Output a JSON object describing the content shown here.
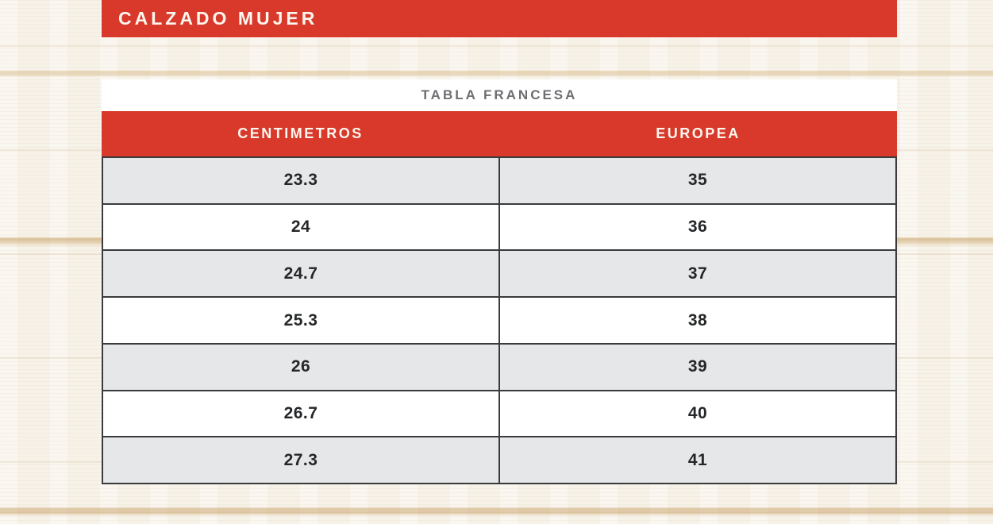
{
  "header": {
    "title": "CALZADO MUJER"
  },
  "table": {
    "title": "TABLA FRANCESA",
    "columns": [
      "CENTIMETROS",
      "EUROPEA"
    ],
    "rows": [
      [
        "23.3",
        "35"
      ],
      [
        "24",
        "36"
      ],
      [
        "24.7",
        "37"
      ],
      [
        "25.3",
        "38"
      ],
      [
        "26",
        "39"
      ],
      [
        "26.7",
        "40"
      ],
      [
        "27.3",
        "41"
      ]
    ]
  },
  "colors": {
    "accent_red": "#d8392b",
    "row_alt_gray": "#e6e7e8",
    "title_gray": "#6d6e71",
    "cell_text": "#242628",
    "grid_border": "#3b3b3d"
  }
}
